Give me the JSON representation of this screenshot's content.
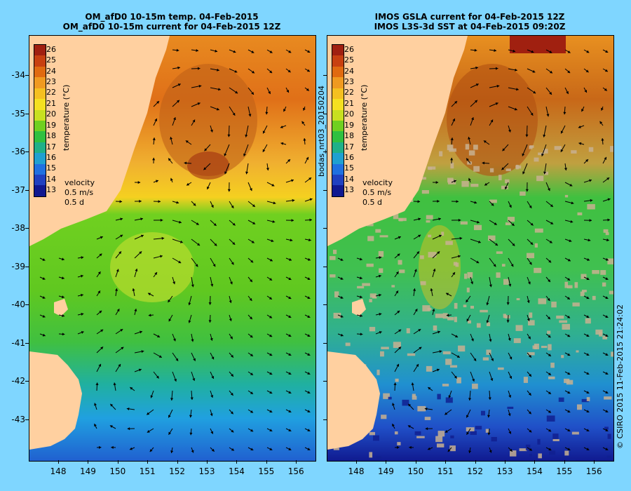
{
  "left_panel": {
    "title_line1": "OM_afD0 10-15m temp. 04-Feb-2015",
    "title_line2": "OM_afD0 10-15m current for 04-Feb-2015 12Z"
  },
  "right_panel": {
    "title_line1": "IMOS GSLA current for 04-Feb-2015 12Z",
    "title_line2": "IMOS L3S-3d SST at 04-Feb-2015 09:20Z"
  },
  "colorbar": {
    "label": "temperature (°C)",
    "ticks": [
      "26",
      "25",
      "24",
      "23",
      "22",
      "21",
      "20",
      "19",
      "18",
      "17",
      "16",
      "15",
      "14",
      "13"
    ],
    "colors": [
      "#a02010",
      "#c84010",
      "#e06a10",
      "#f09a20",
      "#f5c020",
      "#f5e020",
      "#c8e020",
      "#70d020",
      "#30c040",
      "#20b088",
      "#20a0d0",
      "#2070e0",
      "#2040c0",
      "#101890"
    ]
  },
  "legend": {
    "title": "velocity",
    "speed": "0.5 m/s",
    "time": "0.5 d"
  },
  "axes": {
    "y_labels": [
      "-34",
      "-35",
      "-36",
      "-37",
      "-38",
      "-39",
      "-40",
      "-41",
      "-42",
      "-43"
    ],
    "x_labels": [
      "148",
      "149",
      "150",
      "151",
      "152",
      "153",
      "154",
      "155",
      "156"
    ]
  },
  "side_labels": {
    "file": "bodas_nrt03_20150204",
    "credit": "© CSIRO 2015   11-Feb-2015 21:24:02"
  },
  "colors": {
    "background": "#7fd6ff",
    "land": "#ffd0a0"
  }
}
